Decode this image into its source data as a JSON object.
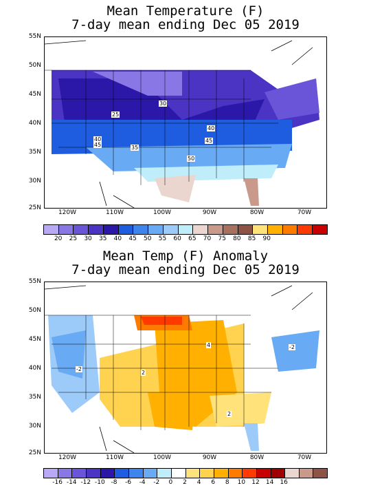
{
  "top": {
    "title_line1": "Mean Temperature (F)",
    "title_line2": "7-day mean ending Dec 05 2019",
    "lat_labels": [
      "55N",
      "50N",
      "45N",
      "40N",
      "35N",
      "30N",
      "25N"
    ],
    "lon_labels": [
      "120W",
      "110W",
      "100W",
      "90W",
      "80W",
      "70W"
    ],
    "contour_labels": [
      "25",
      "30",
      "40",
      "40",
      "45",
      "45",
      "35",
      "50"
    ],
    "colorbar_labels": [
      "20",
      "25",
      "30",
      "35",
      "40",
      "45",
      "50",
      "55",
      "60",
      "65",
      "70",
      "75",
      "80",
      "85",
      "90"
    ],
    "colorbar_colors": [
      "#b9a9f5",
      "#8a77e6",
      "#6a55d8",
      "#4b34c4",
      "#2c18a8",
      "#1f5de0",
      "#3d85ec",
      "#68aaf4",
      "#9ccbf9",
      "#bfeefa",
      "#ebd6cf",
      "#c99a8c",
      "#a8705f",
      "#8d5344",
      "#ffe27a",
      "#ffb000",
      "#ff7b00",
      "#ff3a00",
      "#c80000"
    ]
  },
  "bottom": {
    "title_line1": "Mean Temp (F) Anomaly",
    "title_line2": "7-day mean ending Dec 05 2019",
    "lat_labels": [
      "55N",
      "50N",
      "45N",
      "40N",
      "35N",
      "30N",
      "25N"
    ],
    "lon_labels": [
      "120W",
      "110W",
      "100W",
      "90W",
      "80W",
      "70W"
    ],
    "contour_labels": [
      "-2",
      "2",
      "4",
      "2",
      "-2"
    ],
    "colorbar_labels": [
      "-16",
      "-14",
      "-12",
      "-10",
      "-8",
      "-6",
      "-4",
      "-2",
      "0",
      "2",
      "4",
      "6",
      "8",
      "10",
      "12",
      "14",
      "16"
    ],
    "colorbar_colors": [
      "#b9a9f5",
      "#8a77e6",
      "#6a55d8",
      "#4b34c4",
      "#2c18a8",
      "#1f5de0",
      "#3d85ec",
      "#68aaf4",
      "#bfeefa",
      "#ffffff",
      "#ffe27a",
      "#ffd24f",
      "#ffb000",
      "#ff7b00",
      "#ff3a00",
      "#c80000",
      "#a00000",
      "#ebd6cf",
      "#c99a8c",
      "#8d5344"
    ]
  }
}
